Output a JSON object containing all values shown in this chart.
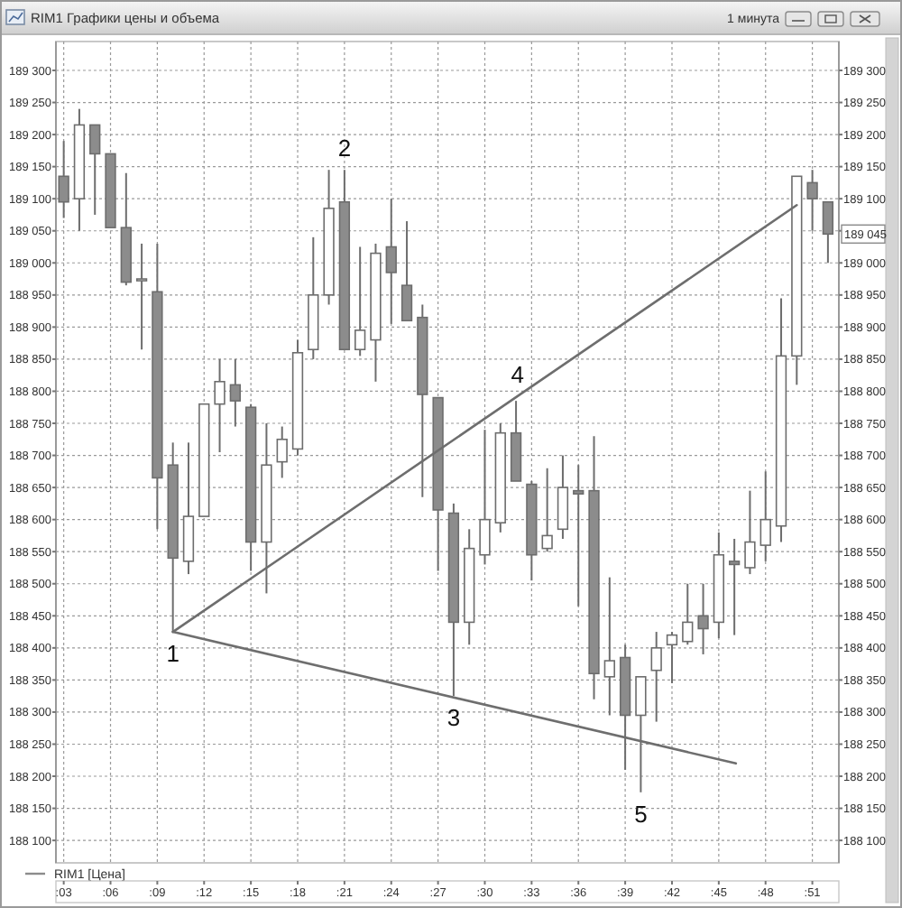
{
  "chart_data": {
    "type": "candlestick",
    "title": "RIM1 Графики цены и объема",
    "subtitle": "1 минута",
    "xlim": [
      2.5,
      52.7
    ],
    "xticks": [
      {
        "value": 3,
        "label": ":03"
      },
      {
        "value": 6,
        "label": ":06"
      },
      {
        "value": 9,
        "label": ":09"
      },
      {
        "value": 12,
        "label": ":12"
      },
      {
        "value": 15,
        "label": ":15"
      },
      {
        "value": 18,
        "label": ":18"
      },
      {
        "value": 21,
        "label": ":21"
      },
      {
        "value": 24,
        "label": ":24"
      },
      {
        "value": 27,
        "label": ":27"
      },
      {
        "value": 30,
        "label": ":30"
      },
      {
        "value": 33,
        "label": ":33"
      },
      {
        "value": 36,
        "label": ":36"
      },
      {
        "value": 39,
        "label": ":39"
      },
      {
        "value": 42,
        "label": ":42"
      },
      {
        "value": 45,
        "label": ":45"
      },
      {
        "value": 48,
        "label": ":48"
      },
      {
        "value": 51,
        "label": ":51"
      }
    ],
    "ylim": [
      188065,
      189345
    ],
    "yticks": [
      {
        "value": 188100,
        "label": "188 100"
      },
      {
        "value": 188150,
        "label": "188 150"
      },
      {
        "value": 188200,
        "label": "188 200"
      },
      {
        "value": 188250,
        "label": "188 250"
      },
      {
        "value": 188300,
        "label": "188 300"
      },
      {
        "value": 188350,
        "label": "188 350"
      },
      {
        "value": 188400,
        "label": "188 400"
      },
      {
        "value": 188450,
        "label": "188 450"
      },
      {
        "value": 188500,
        "label": "188 500"
      },
      {
        "value": 188550,
        "label": "188 550"
      },
      {
        "value": 188600,
        "label": "188 600"
      },
      {
        "value": 188650,
        "label": "188 650"
      },
      {
        "value": 188700,
        "label": "188 700"
      },
      {
        "value": 188750,
        "label": "188 750"
      },
      {
        "value": 188800,
        "label": "188 800"
      },
      {
        "value": 188850,
        "label": "188 850"
      },
      {
        "value": 188900,
        "label": "188 900"
      },
      {
        "value": 188950,
        "label": "188 950"
      },
      {
        "value": 189000,
        "label": "189 000"
      },
      {
        "value": 189050,
        "label": "189 050"
      },
      {
        "value": 189100,
        "label": "189 100"
      },
      {
        "value": 189150,
        "label": "189 150"
      },
      {
        "value": 189200,
        "label": "189 200"
      },
      {
        "value": 189250,
        "label": "189 250"
      },
      {
        "value": 189300,
        "label": "189 300"
      }
    ],
    "y2lim": [
      188065,
      189345
    ],
    "y2ticks": [
      {
        "value": 188100,
        "label": "188 100"
      },
      {
        "value": 188150,
        "label": "188 150"
      },
      {
        "value": 188200,
        "label": "188 200"
      },
      {
        "value": 188250,
        "label": "188 250"
      },
      {
        "value": 188300,
        "label": "188 300"
      },
      {
        "value": 188350,
        "label": "188 350"
      },
      {
        "value": 188400,
        "label": "188 400"
      },
      {
        "value": 188450,
        "label": "188 450"
      },
      {
        "value": 188500,
        "label": "188 500"
      },
      {
        "value": 188550,
        "label": "188 550"
      },
      {
        "value": 188600,
        "label": "188 600"
      },
      {
        "value": 188650,
        "label": "188 650"
      },
      {
        "value": 188700,
        "label": "188 700"
      },
      {
        "value": 188750,
        "label": "188 750"
      },
      {
        "value": 188800,
        "label": "188 800"
      },
      {
        "value": 188850,
        "label": "188 850"
      },
      {
        "value": 188900,
        "label": "188 900"
      },
      {
        "value": 188950,
        "label": "188 950"
      },
      {
        "value": 189000,
        "label": "189 000"
      },
      {
        "value": 189050,
        "label": null
      },
      {
        "value": 189100,
        "label": "189 100"
      },
      {
        "value": 189150,
        "label": "189 150"
      },
      {
        "value": 189200,
        "label": "189 200"
      },
      {
        "value": 189250,
        "label": "189 250"
      },
      {
        "value": 189300,
        "label": "189 300"
      }
    ],
    "grid": true,
    "legend": "bottom left",
    "series": [
      {
        "name": "RIM1 [Цена]",
        "color": "#8c8c8c",
        "colors": [
          "#8c8c8c",
          "#ffffff",
          "#8c8c8c",
          "#8c8c8c",
          "#8c8c8c",
          "#ffffff",
          "#8c8c8c",
          "#8c8c8c",
          "#ffffff",
          "#ffffff",
          "#ffffff",
          "#8c8c8c",
          "#8c8c8c",
          "#ffffff",
          "#ffffff",
          "#ffffff",
          "#ffffff",
          "#ffffff",
          "#8c8c8c",
          "#ffffff",
          "#ffffff",
          "#8c8c8c",
          "#8c8c8c",
          "#8c8c8c",
          "#8c8c8c",
          "#8c8c8c",
          "#ffffff",
          "#ffffff",
          "#ffffff",
          "#8c8c8c",
          "#8c8c8c",
          "#ffffff",
          "#ffffff",
          "#8c8c8c",
          "#8c8c8c",
          "#ffffff",
          "#8c8c8c",
          "#ffffff",
          "#ffffff",
          "#ffffff",
          "#ffffff",
          "#8c8c8c",
          "#ffffff",
          "#8c8c8c",
          "#ffffff",
          "#ffffff",
          "#ffffff",
          "#ffffff",
          "#8c8c8c",
          "#8c8c8c"
        ],
        "x": [
          3,
          4,
          5,
          6,
          7,
          8,
          9,
          10,
          11,
          12,
          13,
          14,
          15,
          16,
          17,
          18,
          19,
          20,
          21,
          22,
          23,
          24,
          25,
          26,
          27,
          28,
          29,
          30,
          31,
          32,
          33,
          34,
          35,
          36,
          37,
          38,
          39,
          40,
          41,
          42,
          43,
          44,
          45,
          46,
          47,
          48,
          49,
          50,
          51,
          52
        ],
        "ohlc": [
          [
            189135,
            189190,
            189070,
            189095
          ],
          [
            189100,
            189240,
            189050,
            189215
          ],
          [
            189215,
            189215,
            189075,
            189170
          ],
          [
            189170,
            189170,
            189055,
            189055
          ],
          [
            189055,
            189140,
            188965,
            188970
          ],
          [
            188975,
            189030,
            188865,
            188975
          ],
          [
            188955,
            189030,
            188585,
            188665
          ],
          [
            188685,
            188720,
            188425,
            188540
          ],
          [
            188535,
            188720,
            188515,
            188605
          ],
          [
            188605,
            188780,
            188605,
            188780
          ],
          [
            188780,
            188850,
            188705,
            188815
          ],
          [
            188810,
            188850,
            188745,
            188785
          ],
          [
            188775,
            188780,
            188520,
            188565
          ],
          [
            188565,
            188750,
            188485,
            188685
          ],
          [
            188690,
            188745,
            188665,
            188725
          ],
          [
            188710,
            188880,
            188700,
            188860
          ],
          [
            188865,
            189040,
            188850,
            188950
          ],
          [
            188950,
            189145,
            188935,
            189085
          ],
          [
            189095,
            189145,
            188865,
            188865
          ],
          [
            188865,
            189025,
            188855,
            188895
          ],
          [
            188880,
            189030,
            188815,
            189015
          ],
          [
            189025,
            189100,
            188905,
            188985
          ],
          [
            188965,
            189065,
            188910,
            188910
          ],
          [
            188915,
            188935,
            188635,
            188795
          ],
          [
            188790,
            188790,
            188520,
            188615
          ],
          [
            188610,
            188625,
            188325,
            188440
          ],
          [
            188440,
            188585,
            188405,
            188555
          ],
          [
            188545,
            188740,
            188530,
            188600
          ],
          [
            188595,
            188750,
            188580,
            188735
          ],
          [
            188735,
            188785,
            188660,
            188660
          ],
          [
            188655,
            188660,
            188505,
            188545
          ],
          [
            188555,
            188680,
            188550,
            188575
          ],
          [
            188585,
            188700,
            188570,
            188650
          ],
          [
            188645,
            188685,
            188465,
            188640
          ],
          [
            188645,
            188730,
            188320,
            188360
          ],
          [
            188355,
            188510,
            188295,
            188380
          ],
          [
            188385,
            188405,
            188210,
            188295
          ],
          [
            188295,
            188355,
            188175,
            188355
          ],
          [
            188365,
            188425,
            188285,
            188400
          ],
          [
            188405,
            188425,
            188345,
            188420
          ],
          [
            188410,
            188500,
            188405,
            188440
          ],
          [
            188450,
            188500,
            188390,
            188430
          ],
          [
            188440,
            188580,
            188415,
            188545
          ],
          [
            188535,
            188570,
            188420,
            188530
          ],
          [
            188525,
            188645,
            188515,
            188565
          ],
          [
            188560,
            188675,
            188535,
            188600
          ],
          [
            188590,
            188945,
            188565,
            188855
          ],
          [
            188855,
            189135,
            188810,
            189135
          ],
          [
            189125,
            189145,
            189050,
            189100
          ],
          [
            189095,
            189095,
            189000,
            189045
          ]
        ]
      },
      {
        "type": "line",
        "color": "#6e6e6e",
        "x": [
          10,
          50
        ],
        "values": [
          188425,
          189090
        ]
      },
      {
        "type": "line",
        "color": "#6e6e6e",
        "x": [
          10,
          46.1
        ],
        "values": [
          188425,
          188220
        ]
      }
    ],
    "annotations": [
      {
        "text": "1",
        "x": 10,
        "y": 188425
      },
      {
        "text": "2",
        "x": 21,
        "y": 189145
      },
      {
        "text": "3",
        "x": 28,
        "y": 188325
      },
      {
        "text": "4",
        "x": 32.1,
        "y": 188792
      },
      {
        "text": "5",
        "x": 40,
        "y": 188175
      },
      {
        "text": "189 045",
        "y": 189045
      }
    ]
  }
}
